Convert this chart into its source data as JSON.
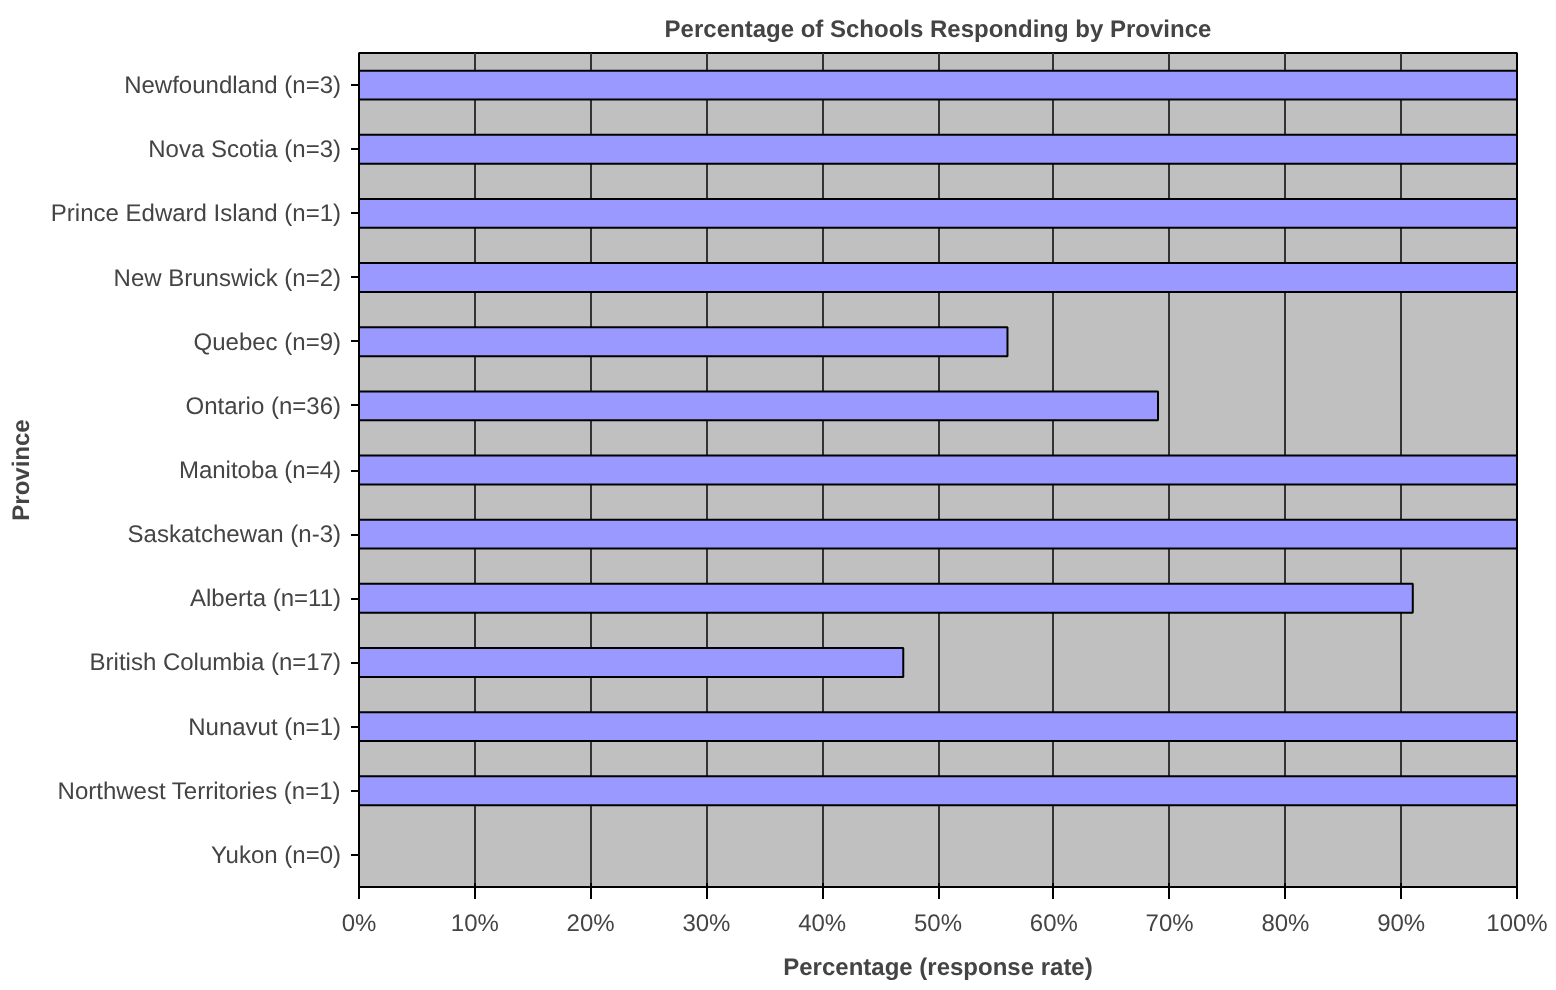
{
  "chart_data": {
    "type": "bar",
    "orientation": "horizontal",
    "title": "Percentage of Schools Responding by Province",
    "xlabel": "Percentage (response rate)",
    "ylabel": "Province",
    "categories": [
      "Newfoundland (n=3)",
      "Nova Scotia (n=3)",
      "Prince Edward Island (n=1)",
      "New Brunswick (n=2)",
      "Quebec (n=9)",
      "Ontario (n=36)",
      "Manitoba (n=4)",
      "Saskatchewan (n-3)",
      "Alberta (n=11)",
      "British Columbia (n=17)",
      "Nunavut (n=1)",
      "Northwest Territories (n=1)",
      "Yukon (n=0)"
    ],
    "values": [
      100,
      100,
      100,
      100,
      56,
      69,
      100,
      100,
      91,
      47,
      100,
      100,
      null
    ],
    "color": "#9999ff",
    "xlim": [
      0,
      100
    ],
    "xticks": [
      {
        "value": 0,
        "label": "0%"
      },
      {
        "value": 10,
        "label": "10%"
      },
      {
        "value": 20,
        "label": "20%"
      },
      {
        "value": 30,
        "label": "30%"
      },
      {
        "value": 40,
        "label": "40%"
      },
      {
        "value": 50,
        "label": "50%"
      },
      {
        "value": 60,
        "label": "60%"
      },
      {
        "value": 70,
        "label": "70%"
      },
      {
        "value": 80,
        "label": "80%"
      },
      {
        "value": 90,
        "label": "90%"
      },
      {
        "value": 100,
        "label": "100%"
      }
    ],
    "grid": "x"
  }
}
